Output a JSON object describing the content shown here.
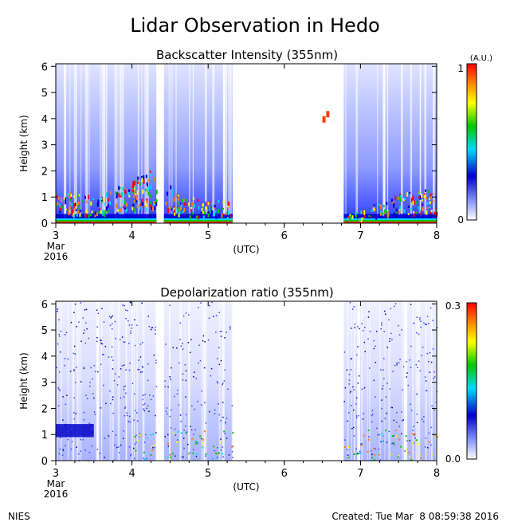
{
  "title": "Lidar Observation in Hedo",
  "footer": {
    "left": "NIES",
    "right": "Created: Tue Mar  8 08:59:38 2016"
  },
  "chart_data": [
    {
      "type": "heatmap",
      "title": "Backscatter Intensity (355nm)",
      "ylabel": "Height (km)",
      "xlabel": "(UTC)",
      "x_ticks": [
        "3",
        "4",
        "5",
        "6",
        "7",
        "8"
      ],
      "x_start_label": [
        "Mar",
        "2016"
      ],
      "y_ticks": [
        "0",
        "1",
        "2",
        "3",
        "4",
        "5",
        "6"
      ],
      "xlim": [
        3,
        8
      ],
      "ylim": [
        0,
        6.1
      ],
      "colorbar": {
        "unit": "(A.U.)",
        "min_label": "0",
        "max_label": "1",
        "range": [
          0,
          1
        ]
      },
      "colormap": [
        "#ffffff",
        "#6a7bff",
        "#0000d0",
        "#00e0ff",
        "#00d000",
        "#ffff00",
        "#ff8000",
        "#ff0000"
      ],
      "features": {
        "aerosol_layer_top_km": [
          {
            "x": 3.0,
            "y": 1.2
          },
          {
            "x": 3.5,
            "y": 1.0
          },
          {
            "x": 4.0,
            "y": 1.6
          },
          {
            "x": 4.25,
            "y": 2.0
          },
          {
            "x": 4.7,
            "y": 1.0
          },
          {
            "x": 5.3,
            "y": 0.8
          },
          {
            "x": 6.8,
            "y": 0.3
          },
          {
            "x": 7.5,
            "y": 1.1
          },
          {
            "x": 8.0,
            "y": 1.3
          }
        ],
        "gaps_hours": [
          [
            4.32,
            4.42
          ],
          [
            5.32,
            6.78
          ]
        ],
        "high_cloud_km": [
          {
            "x": 6.5,
            "y": 4.0
          },
          {
            "x": 6.55,
            "y": 4.2
          }
        ]
      }
    },
    {
      "type": "heatmap",
      "title": "Depolarization ratio (355nm)",
      "ylabel": "Height (km)",
      "xlabel": "(UTC)",
      "x_ticks": [
        "3",
        "4",
        "5",
        "6",
        "7",
        "8"
      ],
      "x_start_label": [
        "Mar",
        "2016"
      ],
      "y_ticks": [
        "0",
        "1",
        "2",
        "3",
        "4",
        "5",
        "6"
      ],
      "xlim": [
        3,
        8
      ],
      "ylim": [
        0,
        6.1
      ],
      "colorbar": {
        "unit": "",
        "min_label": "0.0",
        "max_label": "0.3",
        "range": [
          0,
          0.3
        ]
      },
      "colormap": [
        "#ffffff",
        "#6a7bff",
        "#0000d0",
        "#00e0ff",
        "#00d000",
        "#ffff00",
        "#ff8000",
        "#ff0000"
      ],
      "features": {
        "dense_layer_km": [
          {
            "x": 3.0,
            "y": 1.4
          },
          {
            "x": 3.5,
            "y": 1.1
          }
        ],
        "gaps_hours": [
          [
            4.32,
            4.42
          ],
          [
            5.32,
            6.78
          ]
        ],
        "dust_layer_top_km": [
          {
            "x": 4.5,
            "y": 0.9
          },
          {
            "x": 7.5,
            "y": 1.0
          }
        ]
      }
    }
  ]
}
